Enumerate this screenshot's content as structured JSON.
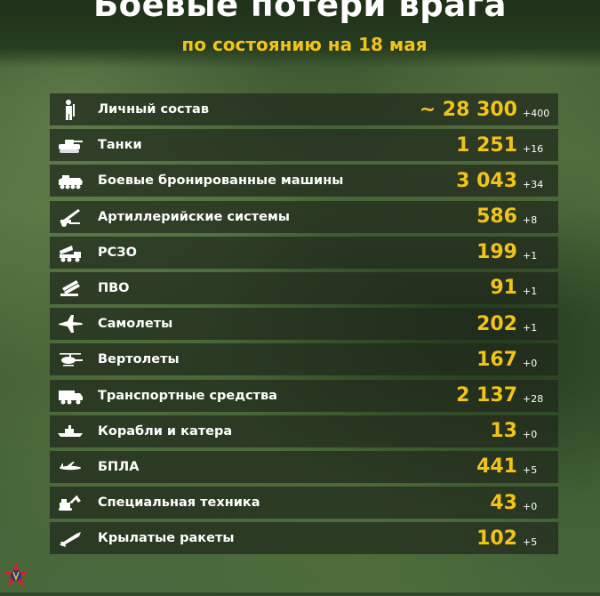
{
  "header": {
    "title": "Боевые потери врага",
    "subtitle": "по состоянию на 18 мая"
  },
  "rows": [
    {
      "icon": "soldier-icon",
      "label": "Личный состав",
      "value": "~ 28 300",
      "delta": "+400"
    },
    {
      "icon": "tank-icon",
      "label": "Танки",
      "value": "1 251",
      "delta": "+16"
    },
    {
      "icon": "armored-vehicle-icon",
      "label": "Боевые бронированные машины",
      "value": "3 043",
      "delta": "+34"
    },
    {
      "icon": "artillery-icon",
      "label": "Артиллерийские системы",
      "value": "586",
      "delta": "+8"
    },
    {
      "icon": "mlrs-icon",
      "label": "РСЗО",
      "value": "199",
      "delta": "+1"
    },
    {
      "icon": "air-defense-icon",
      "label": "ПВО",
      "value": "91",
      "delta": "+1"
    },
    {
      "icon": "jet-icon",
      "label": "Самолеты",
      "value": "202",
      "delta": "+1"
    },
    {
      "icon": "helicopter-icon",
      "label": "Вертолеты",
      "value": "167",
      "delta": "+0"
    },
    {
      "icon": "truck-icon",
      "label": "Транспортные средства",
      "value": "2 137",
      "delta": "+28"
    },
    {
      "icon": "ship-icon",
      "label": "Корабли и катера",
      "value": "13",
      "delta": "+0"
    },
    {
      "icon": "drone-icon",
      "label": "БПЛА",
      "value": "441",
      "delta": "+5"
    },
    {
      "icon": "excavator-icon",
      "label": "Специальная техника",
      "value": "43",
      "delta": "+0"
    },
    {
      "icon": "missile-icon",
      "label": "Крылатые ракеты",
      "value": "102",
      "delta": "+5"
    }
  ],
  "colors": {
    "accent": "#f2c318",
    "row_bg": "#20281c",
    "text": "#ffffff"
  },
  "footer": {
    "emblem": "armed-forces-emblem-icon"
  }
}
